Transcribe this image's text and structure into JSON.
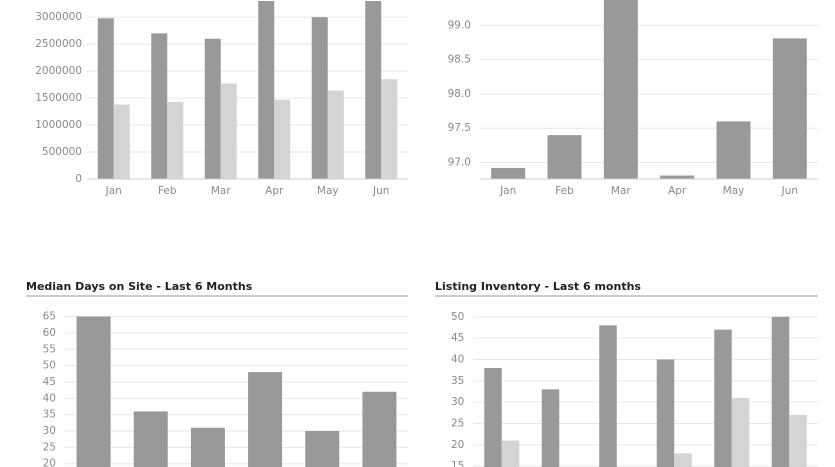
{
  "chart_data": [
    {
      "type": "bar",
      "categories": [
        "Jan",
        "Feb",
        "Mar",
        "Apr",
        "May",
        "Jun"
      ],
      "series": [
        {
          "color": "#999999",
          "values": [
            2980000,
            2700000,
            2600000,
            3300000,
            3000000,
            3300000
          ]
        },
        {
          "color": "#d4d4d4",
          "values": [
            1380000,
            1430000,
            1770000,
            1470000,
            1640000,
            1850000
          ]
        }
      ],
      "ylim": [
        0,
        3300000
      ],
      "yticks": [
        0,
        500000,
        1000000,
        1500000,
        2000000,
        2500000,
        3000000
      ],
      "grid": true
    },
    {
      "type": "bar",
      "categories": [
        "Jan",
        "Feb",
        "Mar",
        "Apr",
        "May",
        "Jun"
      ],
      "series": [
        {
          "color": "#999999",
          "values": [
            96.92,
            97.4,
            99.4,
            96.81,
            97.6,
            98.81
          ]
        }
      ],
      "ylim": [
        96.76,
        99.37
      ],
      "yticks": [
        {
          "value": 97,
          "label": "97.0"
        },
        97.5,
        {
          "value": 98,
          "label": "98.0"
        },
        98.5,
        {
          "value": 99,
          "label": "99.0"
        }
      ],
      "grid": true
    },
    {
      "type": "bar",
      "title": "Median Days on Site - Last 6 Months",
      "series": [
        {
          "color": "#999999",
          "values": [
            65,
            36,
            31,
            48,
            30,
            42
          ]
        }
      ],
      "ylim": [
        19,
        67
      ],
      "yticks": [
        20,
        25,
        30,
        35,
        40,
        45,
        50,
        55,
        60,
        65
      ],
      "grid": true
    },
    {
      "type": "bar",
      "title": "Listing Inventory - Last 6 months",
      "series": [
        {
          "color": "#999999",
          "values": [
            38,
            33,
            48,
            40,
            47,
            50
          ]
        },
        {
          "color": "#d4d4d4",
          "values": [
            21,
            null,
            null,
            18,
            31,
            27
          ]
        }
      ],
      "ylim": [
        14.8,
        51.6
      ],
      "yticks": [
        15,
        20,
        25,
        30,
        35,
        40,
        45,
        50
      ],
      "grid": true
    }
  ]
}
